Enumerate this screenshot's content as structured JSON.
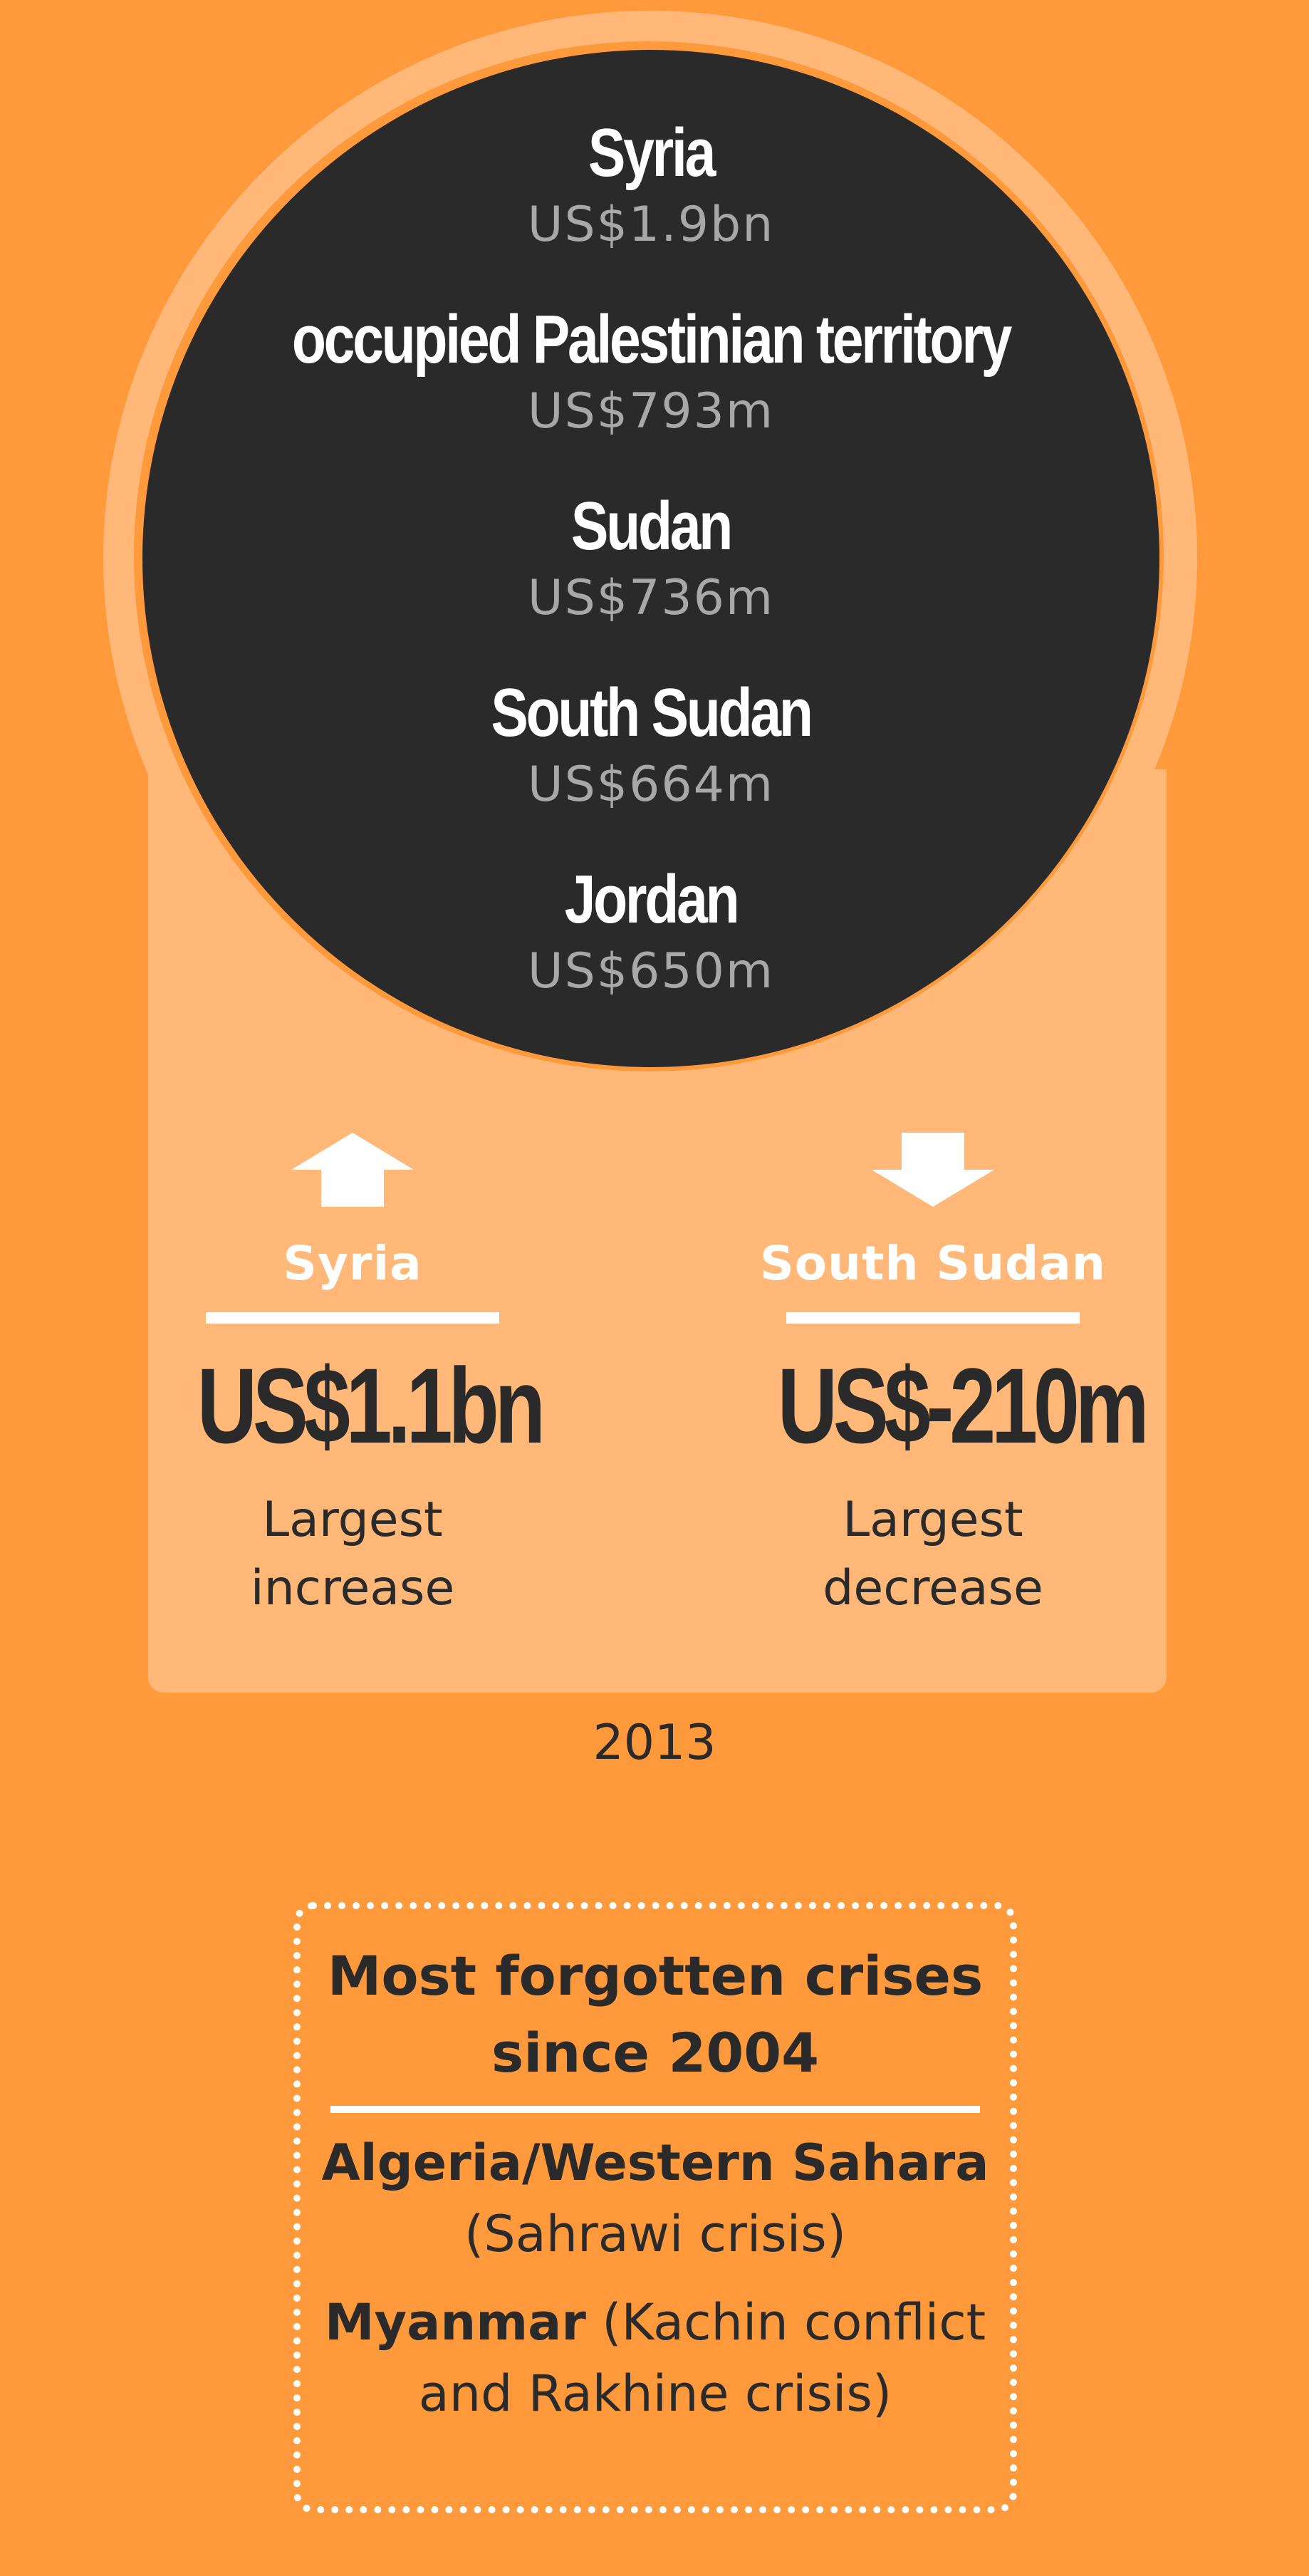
{
  "top_countries": [
    {
      "name": "Syria",
      "amount": "US$1.9bn"
    },
    {
      "name": "occupied Palestinian territory",
      "amount": "US$793m"
    },
    {
      "name": "Sudan",
      "amount": "US$736m"
    },
    {
      "name": "South Sudan",
      "amount": "US$664m"
    },
    {
      "name": "Jordan",
      "amount": "US$650m"
    }
  ],
  "largest_increase": {
    "country": "Syria",
    "amount": "US$1.1bn",
    "caption_line1": "Largest",
    "caption_line2": "increase",
    "arrow_icon": "arrow-up-icon"
  },
  "largest_decrease": {
    "country": "South Sudan",
    "amount": "US$-210m",
    "caption_line1": "Largest",
    "caption_line2": "decrease",
    "arrow_icon": "arrow-down-icon"
  },
  "year": "2013",
  "forgotten_crises": {
    "title_line1": "Most forgotten crises",
    "title_line2": "since 2004",
    "items": [
      {
        "bold": "Algeria/Western Sahara",
        "detail": "(Sahrawi crisis)"
      },
      {
        "bold": "Myanmar",
        "detail_inline": "(Kachin conflict",
        "detail_line2": "and Rakhine crisis)"
      }
    ]
  },
  "colors": {
    "background": "#FF9A3C",
    "panel": "#FFB877",
    "circle": "#2A2A2A",
    "white": "#FFFFFF",
    "amount_grey": "#A8A8A8",
    "dark_text": "#2A2A2A"
  }
}
